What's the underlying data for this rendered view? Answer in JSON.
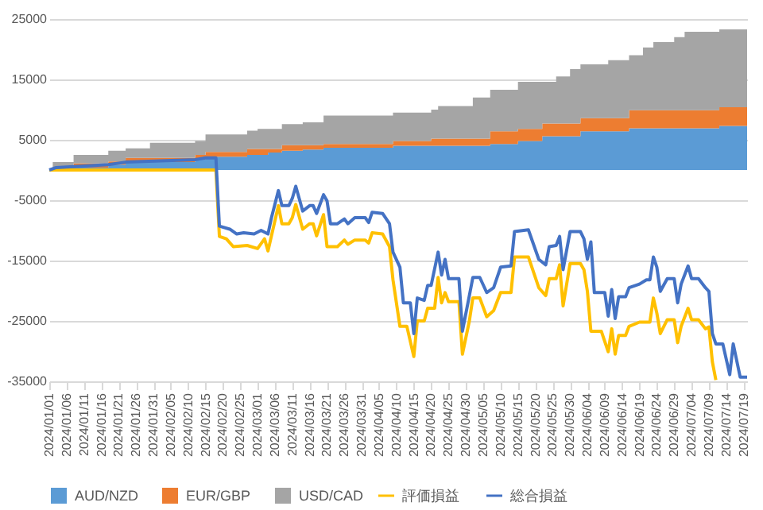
{
  "chart_data": {
    "type": "area",
    "stacked": true,
    "grid": "y",
    "legend": "bottom",
    "x": [
      "2024-01-01",
      "2024-01-02",
      "2024-01-03",
      "2024-01-08",
      "2024-01-18",
      "2024-01-23",
      "2024-01-30",
      "2024-02-12",
      "2024-02-15",
      "2024-02-27",
      "2024-03-01",
      "2024-03-04",
      "2024-03-08",
      "2024-03-14",
      "2024-03-20",
      "2024-04-09",
      "2024-04-20",
      "2024-04-22",
      "2024-05-02",
      "2024-05-07",
      "2024-05-15",
      "2024-05-22",
      "2024-05-26",
      "2024-05-30",
      "2024-06-02",
      "2024-06-10",
      "2024-06-16",
      "2024-06-20",
      "2024-06-23",
      "2024-06-29",
      "2024-07-02",
      "2024-07-12",
      "2024-07-20"
    ],
    "series": [
      {
        "name": "AUD/NZD",
        "color": "#5b9bd5",
        "values": [
          0,
          0,
          400,
          400,
          900,
          1300,
          1300,
          1700,
          2200,
          2500,
          2500,
          2900,
          3200,
          3400,
          3700,
          4000,
          4000,
          4000,
          4000,
          4300,
          4800,
          5600,
          5600,
          5600,
          6400,
          6400,
          6900,
          6900,
          6900,
          6900,
          6900,
          7300,
          7300
        ]
      },
      {
        "name": "EUR/GBP",
        "color": "#ed7d31",
        "values": [
          0,
          0,
          0,
          700,
          500,
          700,
          700,
          800,
          800,
          1000,
          1000,
          600,
          900,
          700,
          600,
          800,
          1200,
          1200,
          1200,
          2100,
          2000,
          2100,
          2100,
          2100,
          2200,
          2200,
          3000,
          3000,
          3000,
          3000,
          3000,
          3100,
          3100
        ]
      },
      {
        "name": "USD/CAD",
        "color": "#a5a5a5",
        "values": [
          0,
          1300,
          900,
          1400,
          1800,
          1600,
          2500,
          2300,
          2900,
          3000,
          3300,
          3300,
          3500,
          3800,
          4700,
          4700,
          4800,
          5400,
          6800,
          6900,
          7800,
          6900,
          7800,
          9000,
          8900,
          9600,
          9100,
          10400,
          11300,
          12100,
          13000,
          12900,
          12900
        ]
      },
      {
        "name": "評価損益",
        "type": "line",
        "color": "#ffc000",
        "x": [
          "2024-01-01",
          "2024-02-18",
          "2024-02-19",
          "2024-02-21",
          "2024-02-23",
          "2024-02-27",
          "2024-03-01",
          "2024-03-03",
          "2024-03-04",
          "2024-03-07",
          "2024-03-08",
          "2024-03-10",
          "2024-03-11",
          "2024-03-12",
          "2024-03-14",
          "2024-03-16",
          "2024-03-17",
          "2024-03-18",
          "2024-03-20",
          "2024-03-21",
          "2024-03-24",
          "2024-03-26",
          "2024-03-27",
          "2024-03-29",
          "2024-04-01",
          "2024-04-02",
          "2024-04-03",
          "2024-04-06",
          "2024-04-08",
          "2024-04-09",
          "2024-04-11",
          "2024-04-13",
          "2024-04-15",
          "2024-04-16",
          "2024-04-18",
          "2024-04-19",
          "2024-04-21",
          "2024-04-22",
          "2024-04-23",
          "2024-04-24",
          "2024-04-25",
          "2024-04-28",
          "2024-04-29",
          "2024-05-01",
          "2024-05-02",
          "2024-05-04",
          "2024-05-06",
          "2024-05-08",
          "2024-05-10",
          "2024-05-13",
          "2024-05-14",
          "2024-05-18",
          "2024-05-21",
          "2024-05-23",
          "2024-05-24",
          "2024-05-26",
          "2024-05-27",
          "2024-05-28",
          "2024-05-30",
          "2024-06-02",
          "2024-06-03",
          "2024-06-04",
          "2024-06-05",
          "2024-06-08",
          "2024-06-10",
          "2024-06-11",
          "2024-06-12",
          "2024-06-13",
          "2024-06-15",
          "2024-06-16",
          "2024-06-19",
          "2024-06-22",
          "2024-06-23",
          "2024-06-24",
          "2024-06-25",
          "2024-06-27",
          "2024-06-29",
          "2024-06-30",
          "2024-07-01",
          "2024-07-03",
          "2024-07-04",
          "2024-07-06",
          "2024-07-08",
          "2024-07-09",
          "2024-07-10",
          "2024-07-11"
        ],
        "values": [
          0,
          0,
          -11000,
          -11400,
          -12700,
          -12500,
          -13000,
          -11400,
          -13400,
          -5900,
          -8900,
          -8900,
          -7900,
          -5700,
          -9800,
          -8900,
          -8900,
          -10900,
          -7400,
          -12700,
          -12700,
          -11600,
          -12300,
          -11600,
          -11600,
          -12100,
          -10400,
          -10600,
          -12700,
          -18200,
          -25900,
          -25900,
          -30900,
          -25000,
          -25000,
          -22900,
          -22900,
          -17800,
          -22000,
          -20300,
          -21800,
          -21800,
          -30500,
          -25000,
          -21200,
          -21200,
          -24300,
          -23300,
          -20300,
          -20300,
          -14400,
          -14400,
          -19500,
          -20800,
          -18000,
          -18000,
          -15700,
          -22500,
          -15500,
          -15500,
          -16500,
          -20100,
          -26700,
          -26700,
          -30100,
          -26300,
          -30500,
          -27400,
          -27400,
          -25900,
          -25200,
          -25200,
          -21200,
          -23700,
          -27100,
          -24800,
          -24800,
          -28600,
          -25900,
          -22900,
          -24800,
          -24800,
          -26300,
          -26000,
          -31800,
          -34800
        ]
      },
      {
        "name": "総合損益",
        "type": "line",
        "color": "#4472c4",
        "x": [
          "2024-01-01",
          "2024-01-03",
          "2024-01-18",
          "2024-01-23",
          "2024-02-12",
          "2024-02-15",
          "2024-02-18",
          "2024-02-19",
          "2024-02-22",
          "2024-02-24",
          "2024-02-26",
          "2024-02-29",
          "2024-03-02",
          "2024-03-04",
          "2024-03-05",
          "2024-03-07",
          "2024-03-08",
          "2024-03-10",
          "2024-03-11",
          "2024-03-12",
          "2024-03-14",
          "2024-03-16",
          "2024-03-17",
          "2024-03-18",
          "2024-03-20",
          "2024-03-21",
          "2024-03-22",
          "2024-03-24",
          "2024-03-26",
          "2024-03-27",
          "2024-03-29",
          "2024-04-01",
          "2024-04-02",
          "2024-04-03",
          "2024-04-06",
          "2024-04-08",
          "2024-04-09",
          "2024-04-11",
          "2024-04-12",
          "2024-04-14",
          "2024-04-15",
          "2024-04-16",
          "2024-04-18",
          "2024-04-19",
          "2024-04-20",
          "2024-04-22",
          "2024-04-23",
          "2024-04-24",
          "2024-04-25",
          "2024-04-28",
          "2024-04-29",
          "2024-05-01",
          "2024-05-02",
          "2024-05-04",
          "2024-05-06",
          "2024-05-08",
          "2024-05-10",
          "2024-05-13",
          "2024-05-14",
          "2024-05-18",
          "2024-05-21",
          "2024-05-23",
          "2024-05-24",
          "2024-05-26",
          "2024-05-27",
          "2024-05-28",
          "2024-05-30",
          "2024-06-02",
          "2024-06-03",
          "2024-06-04",
          "2024-06-05",
          "2024-06-06",
          "2024-06-09",
          "2024-06-10",
          "2024-06-11",
          "2024-06-12",
          "2024-06-13",
          "2024-06-15",
          "2024-06-16",
          "2024-06-19",
          "2024-06-21",
          "2024-06-22",
          "2024-06-23",
          "2024-06-24",
          "2024-06-25",
          "2024-06-27",
          "2024-06-29",
          "2024-06-30",
          "2024-07-01",
          "2024-07-03",
          "2024-07-04",
          "2024-07-06",
          "2024-07-08",
          "2024-07-09",
          "2024-07-10",
          "2024-07-11",
          "2024-07-13",
          "2024-07-15",
          "2024-07-16",
          "2024-07-18",
          "2024-07-20"
        ],
        "values": [
          0,
          400,
          900,
          1300,
          1700,
          2000,
          2000,
          -9300,
          -9800,
          -10600,
          -10400,
          -10600,
          -10000,
          -10600,
          -7900,
          -3400,
          -5900,
          -5900,
          -4700,
          -2700,
          -6800,
          -5900,
          -5900,
          -7200,
          -4100,
          -5100,
          -8900,
          -8900,
          -8100,
          -8900,
          -7900,
          -7900,
          -8700,
          -7000,
          -7200,
          -8900,
          -13600,
          -16100,
          -22000,
          -22000,
          -27100,
          -21200,
          -21600,
          -19100,
          -19100,
          -13600,
          -17400,
          -14800,
          -18000,
          -18000,
          -26700,
          -20800,
          -17800,
          -17800,
          -20300,
          -19500,
          -16100,
          -15900,
          -10200,
          -9900,
          -14800,
          -15700,
          -12700,
          -12500,
          -11000,
          -16500,
          -10200,
          -10200,
          -11400,
          -14800,
          -11900,
          -20300,
          -20300,
          -24200,
          -19800,
          -24600,
          -21000,
          -21000,
          -19500,
          -18900,
          -18200,
          -18200,
          -14400,
          -16100,
          -20100,
          -18000,
          -18000,
          -22000,
          -18900,
          -15900,
          -18000,
          -18000,
          -19500,
          -20100,
          -27100,
          -28800,
          -28800,
          -33900,
          -28800,
          -34300,
          -34300
        ]
      }
    ],
    "xlim": [
      "2024-01-01",
      "2024-07-20"
    ],
    "xticks": [
      {
        "value": "2024-01-01",
        "label": "2024/01/01"
      },
      {
        "value": "2024-01-06",
        "label": "2024/01/06"
      },
      {
        "value": "2024-01-11",
        "label": "2024/01/11"
      },
      {
        "value": "2024-01-16",
        "label": "2024/01/16"
      },
      {
        "value": "2024-01-21",
        "label": "2024/01/21"
      },
      {
        "value": "2024-01-26",
        "label": "2024/01/26"
      },
      {
        "value": "2024-01-31",
        "label": "2024/01/31"
      },
      {
        "value": "2024-02-05",
        "label": "2024/02/05"
      },
      {
        "value": "2024-02-10",
        "label": "2024/02/10"
      },
      {
        "value": "2024-02-15",
        "label": "2024/02/15"
      },
      {
        "value": "2024-02-20",
        "label": "2024/02/20"
      },
      {
        "value": "2024-02-25",
        "label": "2024/02/25"
      },
      {
        "value": "2024-03-01",
        "label": "2024/03/01"
      },
      {
        "value": "2024-03-06",
        "label": "2024/03/06"
      },
      {
        "value": "2024-03-11",
        "label": "2024/03/11"
      },
      {
        "value": "2024-03-16",
        "label": "2024/03/16"
      },
      {
        "value": "2024-03-21",
        "label": "2024/03/21"
      },
      {
        "value": "2024-03-26",
        "label": "2024/03/26"
      },
      {
        "value": "2024-03-31",
        "label": "2024/03/31"
      },
      {
        "value": "2024-04-05",
        "label": "2024/04/05"
      },
      {
        "value": "2024-04-10",
        "label": "2024/04/10"
      },
      {
        "value": "2024-04-15",
        "label": "2024/04/15"
      },
      {
        "value": "2024-04-20",
        "label": "2024/04/20"
      },
      {
        "value": "2024-04-25",
        "label": "2024/04/25"
      },
      {
        "value": "2024-04-30",
        "label": "2024/04/30"
      },
      {
        "value": "2024-05-05",
        "label": "2024/05/05"
      },
      {
        "value": "2024-05-10",
        "label": "2024/05/10"
      },
      {
        "value": "2024-05-15",
        "label": "2024/05/15"
      },
      {
        "value": "2024-05-20",
        "label": "2024/05/20"
      },
      {
        "value": "2024-05-25",
        "label": "2024/05/25"
      },
      {
        "value": "2024-05-30",
        "label": "2024/05/30"
      },
      {
        "value": "2024-06-04",
        "label": "2024/06/04"
      },
      {
        "value": "2024-06-09",
        "label": "2024/06/09"
      },
      {
        "value": "2024-06-14",
        "label": "2024/06/14"
      },
      {
        "value": "2024-06-19",
        "label": "2024/06/19"
      },
      {
        "value": "2024-06-24",
        "label": "2024/06/24"
      },
      {
        "value": "2024-06-29",
        "label": "2024/06/29"
      },
      {
        "value": "2024-07-04",
        "label": "2024/07/04"
      },
      {
        "value": "2024-07-09",
        "label": "2024/07/09"
      },
      {
        "value": "2024-07-14",
        "label": "2024/07/14"
      },
      {
        "value": "2024-07-19",
        "label": "2024/07/19"
      }
    ],
    "ylim": [
      -35000,
      25000
    ],
    "yticks": [
      -35000,
      -25000,
      -15000,
      -5000,
      5000,
      15000,
      25000
    ]
  }
}
